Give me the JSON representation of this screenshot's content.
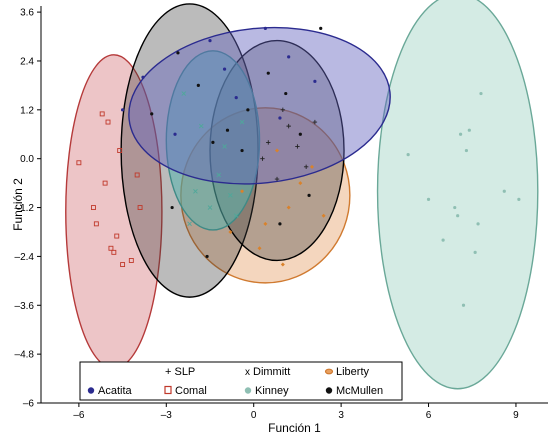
{
  "chart_data": {
    "type": "scatter",
    "xlabel": "Función 1",
    "ylabel": "Función 2",
    "xlim": [
      -7.3,
      10.1
    ],
    "ylim": [
      -6.0,
      3.75
    ],
    "xticks": [
      -6,
      -3,
      0,
      3,
      6,
      9
    ],
    "yticks": [
      3.6,
      2.4,
      1.2,
      0.0,
      -1.2,
      -2.4,
      -3.6,
      -4.8,
      -6
    ],
    "ytick_labels": [
      "3.6",
      "2.4",
      "1.2",
      "0.0",
      "–1.2",
      "–2.4",
      "–3.6",
      "–4.8",
      "–6"
    ],
    "xtick_labels": [
      "–6",
      "–3",
      "0",
      "3",
      "6",
      "9"
    ],
    "legend_position": "bottom-left",
    "grid": false,
    "series": [
      {
        "name": "+ SLP",
        "symbol": "plus",
        "marker_color": "#222222",
        "fill": "none",
        "ellipse": null,
        "points": [
          [
            0.5,
            0.4
          ],
          [
            1.2,
            0.8
          ],
          [
            1.5,
            0.3
          ],
          [
            1.8,
            -0.2
          ],
          [
            0.8,
            -0.5
          ],
          [
            2.1,
            0.9
          ],
          [
            1.0,
            1.2
          ],
          [
            0.3,
            0.0
          ]
        ]
      },
      {
        "name": "Dimmitt",
        "symbol": "x",
        "marker_color": "#4fa89a",
        "fill": "rgba(88,180,175,0.55)",
        "stroke": "#3f8a86",
        "ellipse": {
          "cx": -1.4,
          "cy": 0.45,
          "rx": 1.6,
          "ry": 2.2,
          "angle": 0
        },
        "points": [
          [
            -2.4,
            1.6
          ],
          [
            -1.8,
            0.8
          ],
          [
            -1.2,
            -0.4
          ],
          [
            -0.6,
            -1.4
          ],
          [
            -2.0,
            -0.8
          ],
          [
            -1.0,
            0.3
          ],
          [
            -0.4,
            0.9
          ],
          [
            -2.2,
            -1.6
          ],
          [
            -1.5,
            -1.2
          ],
          [
            -0.8,
            -0.9
          ]
        ]
      },
      {
        "name": "Liberty",
        "symbol": "diamond",
        "marker_color": "#d9822b",
        "fill": "rgba(230,165,110,0.45)",
        "stroke": "#d07a30",
        "ellipse": {
          "cx": 0.4,
          "cy": -0.9,
          "rx": 2.9,
          "ry": 2.15,
          "angle": 0
        },
        "points": [
          [
            1.6,
            -0.6
          ],
          [
            1.2,
            -1.2
          ],
          [
            0.4,
            -1.6
          ],
          [
            -0.4,
            -0.8
          ],
          [
            2.0,
            -0.2
          ],
          [
            0.2,
            -2.2
          ],
          [
            1.0,
            -2.6
          ],
          [
            -0.8,
            -1.8
          ],
          [
            2.4,
            -1.4
          ],
          [
            0.8,
            0.2
          ]
        ]
      },
      {
        "name": "Acatita",
        "symbol": "circle",
        "marker_color": "#2b2b8f",
        "fill": "rgba(100,100,190,0.45)",
        "stroke": "#2b2b8f",
        "ellipse": {
          "cx": 0.2,
          "cy": 1.3,
          "rx": 4.5,
          "ry": 1.9,
          "angle": 6
        },
        "points": [
          [
            -4.5,
            1.2
          ],
          [
            -3.8,
            2.0
          ],
          [
            -2.7,
            0.6
          ],
          [
            -1.5,
            2.9
          ],
          [
            0.4,
            3.2
          ],
          [
            1.2,
            2.5
          ],
          [
            2.1,
            1.9
          ],
          [
            -0.6,
            1.5
          ],
          [
            -1.0,
            2.2
          ],
          [
            0.9,
            1.0
          ]
        ]
      },
      {
        "name": "Comal",
        "symbol": "square",
        "marker_color": "#c0392b",
        "fill": "rgba(210,110,115,0.40)",
        "stroke": "#b53a3a",
        "ellipse": {
          "cx": -4.8,
          "cy": -1.3,
          "rx": 1.65,
          "ry": 3.85,
          "angle": 0
        },
        "points": [
          [
            -6.0,
            -0.1
          ],
          [
            -5.0,
            0.9
          ],
          [
            -4.6,
            0.2
          ],
          [
            -5.4,
            -1.6
          ],
          [
            -4.9,
            -2.2
          ],
          [
            -4.5,
            -2.6
          ],
          [
            -4.2,
            -2.5
          ],
          [
            -5.1,
            -0.6
          ],
          [
            -3.9,
            -1.2
          ],
          [
            -5.5,
            -1.2
          ],
          [
            -4.7,
            -1.9
          ],
          [
            -4.0,
            -0.4
          ],
          [
            -5.2,
            1.1
          ],
          [
            -4.8,
            -2.3
          ]
        ]
      },
      {
        "name": "Kinney",
        "symbol": "circle",
        "marker_color": "#8fbfb3",
        "fill": "rgba(160,210,195,0.45)",
        "stroke": "#6aa898",
        "ellipse": {
          "cx": 7.0,
          "cy": -0.8,
          "rx": 2.75,
          "ry": 4.85,
          "angle": 0
        },
        "points": [
          [
            5.3,
            0.1
          ],
          [
            6.0,
            -1.0
          ],
          [
            7.1,
            0.6
          ],
          [
            7.3,
            0.2
          ],
          [
            6.9,
            -1.2
          ],
          [
            8.6,
            -0.8
          ],
          [
            7.7,
            -1.6
          ],
          [
            7.8,
            1.6
          ],
          [
            6.5,
            -2.0
          ],
          [
            7.6,
            -2.3
          ],
          [
            7.2,
            -3.6
          ],
          [
            9.1,
            -1.0
          ],
          [
            7.0,
            -1.4
          ],
          [
            7.4,
            0.7
          ]
        ]
      },
      {
        "name": "McMullen",
        "symbol": "circle",
        "marker_color": "#111111",
        "fill": "rgba(60,60,60,0.35)",
        "stroke": "#000000",
        "ellipse": {
          "cx": -2.2,
          "cy": 0.2,
          "rx": 2.35,
          "ry": 3.6,
          "angle": 0
        },
        "ellipse2": {
          "cx": 0.8,
          "cy": 0.2,
          "rx": 2.3,
          "ry": 2.7,
          "angle": 0
        },
        "points": [
          [
            -3.5,
            1.1
          ],
          [
            -2.6,
            2.6
          ],
          [
            -1.9,
            1.8
          ],
          [
            -1.4,
            0.4
          ],
          [
            -0.9,
            0.7
          ],
          [
            -0.2,
            1.2
          ],
          [
            0.5,
            2.1
          ],
          [
            1.1,
            1.6
          ],
          [
            1.6,
            0.6
          ],
          [
            2.3,
            3.2
          ],
          [
            1.9,
            -0.9
          ],
          [
            -2.8,
            -1.2
          ],
          [
            -1.6,
            -2.4
          ],
          [
            0.9,
            -1.6
          ],
          [
            -0.4,
            0.2
          ]
        ]
      }
    ]
  },
  "legend": {
    "row1": [
      {
        "label": "+ SLP",
        "glyph": ""
      },
      {
        "label": "Dimmitt",
        "glyph": "x"
      },
      {
        "label": "Liberty",
        "glyph": "liberty"
      }
    ],
    "row2": [
      {
        "label": "Acatita",
        "glyph": "acatita"
      },
      {
        "label": "Comal",
        "glyph": "comal"
      },
      {
        "label": "Kinney",
        "glyph": "kinney"
      },
      {
        "label": "McMullen",
        "glyph": "mcmullen"
      }
    ]
  }
}
